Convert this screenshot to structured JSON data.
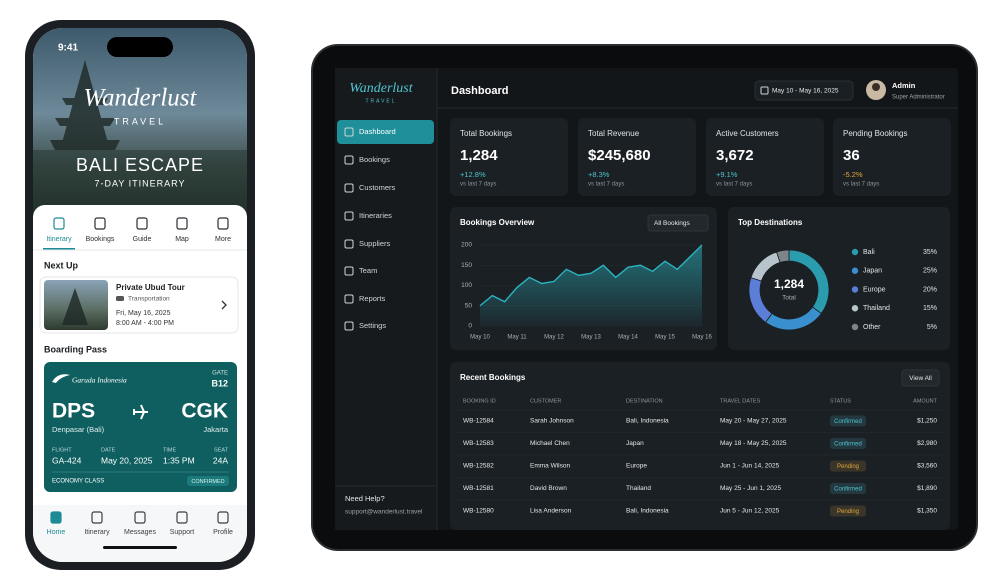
{
  "phone": {
    "time": "9:41",
    "brand": "Wanderlust",
    "brand_sub": "TRAVEL",
    "hero_title": "BALI ESCAPE",
    "hero_subtitle": "7-DAY ITINERARY",
    "tabs": [
      "Itinerary",
      "Bookings",
      "Guide",
      "Map",
      "More"
    ],
    "next_up": {
      "heading": "Next Up",
      "title": "Private Ubud Tour",
      "type": "Transportation",
      "date": "Fri, May 16, 2025",
      "time": "8:00 AM - 4:00 PM"
    },
    "boarding_pass": {
      "heading": "Boarding Pass",
      "airline": "Garuda Indonesia",
      "gate_label": "GATE",
      "gate": "B12",
      "from_code": "DPS",
      "from_city": "Denpasar (Bali)",
      "to_code": "CGK",
      "to_city": "Jakarta",
      "fields": [
        {
          "label": "FLIGHT",
          "value": "GA-424"
        },
        {
          "label": "DATE",
          "value": "May 20, 2025"
        },
        {
          "label": "TIME",
          "value": "1:35 PM"
        },
        {
          "label": "SEAT",
          "value": "24A"
        }
      ],
      "class": "ECONOMY CLASS",
      "status": "CONFIRMED"
    },
    "nav": [
      "Home",
      "Itinerary",
      "Messages",
      "Support",
      "Profile"
    ]
  },
  "dashboard": {
    "brand": "Wanderlust",
    "brand_sub": "TRAVEL",
    "nav": [
      "Dashboard",
      "Bookings",
      "Customers",
      "Itineraries",
      "Suppliers",
      "Team",
      "Reports",
      "Settings"
    ],
    "help_title": "Need Help?",
    "help_email": "support@wanderlust.travel",
    "title": "Dashboard",
    "date_range": "May 10 - May 16, 2025",
    "user_name": "Admin",
    "user_role": "Super Administrator",
    "stats": [
      {
        "label": "Total Bookings",
        "value": "1,284",
        "change": "+12.8%",
        "compare": "vs last 7 days"
      },
      {
        "label": "Total Revenue",
        "value": "$245,680",
        "change": "+8.3%",
        "compare": "vs last 7 days"
      },
      {
        "label": "Active Customers",
        "value": "3,672",
        "change": "+9.1%",
        "compare": "vs last 7 days"
      },
      {
        "label": "Pending Bookings",
        "value": "36",
        "change": "-5.2%",
        "compare": "vs last 7 days"
      }
    ],
    "recent": {
      "title": "Recent Bookings",
      "action": "View All",
      "columns": [
        "BOOKING ID",
        "CUSTOMER",
        "DESTINATION",
        "TRAVEL DATES",
        "STATUS",
        "AMOUNT"
      ],
      "rows": [
        [
          "WB-12584",
          "Sarah Johnson",
          "Bali, Indonesia",
          "May 20 - May 27, 2025",
          "Confirmed",
          "$1,250"
        ],
        [
          "WB-12583",
          "Michael Chen",
          "Japan",
          "May 18 - May 25, 2025",
          "Confirmed",
          "$2,980"
        ],
        [
          "WB-12582",
          "Emma Wilson",
          "Europe",
          "Jun 1 - Jun 14, 2025",
          "Pending",
          "$3,560"
        ],
        [
          "WB-12581",
          "David Brown",
          "Thailand",
          "May 25 - Jun 1, 2025",
          "Confirmed",
          "$1,890"
        ],
        [
          "WB-12580",
          "Lisa Anderson",
          "Bali, Indonesia",
          "Jun 5 - Jun 12, 2025",
          "Pending",
          "$1,350"
        ]
      ],
      "status_colors": {
        "Confirmed": "#4fc3d0",
        "Pending": "#e0a63c"
      }
    }
  },
  "chart_data": [
    {
      "type": "area",
      "title": "Bookings Overview",
      "filter": "All Bookings",
      "categories": [
        "May 10",
        null,
        null,
        "May 11",
        null,
        null,
        "May 12",
        null,
        null,
        "May 13",
        null,
        null,
        "May 14",
        null,
        null,
        "May 15",
        null,
        null,
        "May 16"
      ],
      "values": [
        50,
        75,
        60,
        95,
        120,
        105,
        110,
        140,
        125,
        130,
        150,
        120,
        145,
        150,
        135,
        160,
        140,
        170,
        200
      ],
      "color": "#2bb3c0",
      "ylim": [
        0,
        200
      ],
      "yticks": [
        0,
        50,
        100,
        150,
        200
      ],
      "grid": true
    },
    {
      "type": "pie",
      "title": "Top Destinations",
      "center_value": "1,284",
      "center_label": "Total",
      "categories": [
        "Bali",
        "Japan",
        "Europe",
        "Thailand",
        "Other"
      ],
      "values": [
        35,
        25,
        20,
        15,
        5
      ],
      "value_labels": [
        "35%",
        "25%",
        "20%",
        "15%",
        "5%"
      ],
      "colors": [
        "#2a9cae",
        "#3a8fcf",
        "#5b7fd9",
        "#b8c4cc",
        "#7d858b"
      ]
    }
  ]
}
